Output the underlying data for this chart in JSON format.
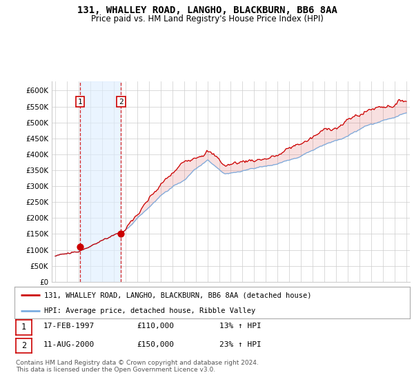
{
  "title_line1": "131, WHALLEY ROAD, LANGHO, BLACKBURN, BB6 8AA",
  "title_line2": "Price paid vs. HM Land Registry's House Price Index (HPI)",
  "legend_label_red": "131, WHALLEY ROAD, LANGHO, BLACKBURN, BB6 8AA (detached house)",
  "legend_label_blue": "HPI: Average price, detached house, Ribble Valley",
  "transaction1_date": "17-FEB-1997",
  "transaction1_price": "£110,000",
  "transaction1_hpi": "13% ↑ HPI",
  "transaction2_date": "11-AUG-2000",
  "transaction2_price": "£150,000",
  "transaction2_hpi": "23% ↑ HPI",
  "footer": "Contains HM Land Registry data © Crown copyright and database right 2024.\nThis data is licensed under the Open Government Licence v3.0.",
  "ylim_min": 0,
  "ylim_max": 630000,
  "ytick_step": 50000,
  "year_start": 1995,
  "year_end": 2025,
  "transaction1_year": 1997.12,
  "transaction2_year": 2000.62,
  "transaction1_price_val": 110000,
  "transaction2_price_val": 150000,
  "red_color": "#cc0000",
  "blue_color": "#7aade0",
  "bg_color": "#ffffff",
  "grid_color": "#cccccc",
  "highlight_color": "#ddeeff"
}
